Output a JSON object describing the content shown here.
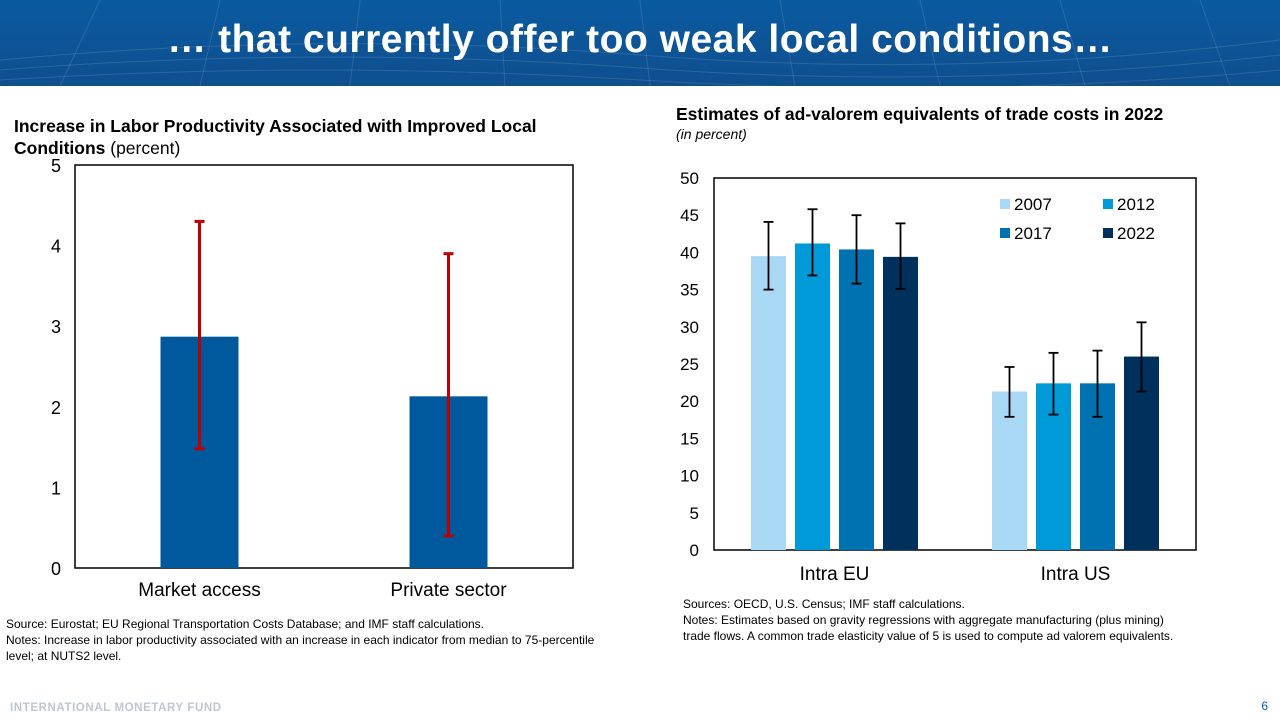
{
  "slide": {
    "title": "… that currently offer too weak local conditions…",
    "footer": "INTERNATIONAL MONETARY FUND",
    "page_number": "6"
  },
  "colors": {
    "banner": "#0a5aa0",
    "left_bar": "#00599c",
    "left_error": "#c00000",
    "right_series": [
      "#a9d8f5",
      "#009ad8",
      "#0071b1",
      "#00305c"
    ]
  },
  "left": {
    "title_main": "Increase in Labor Productivity Associated with Improved Local Conditions",
    "title_unit": "(percent)",
    "source": "Source: Eurostat; EU Regional Transportation Costs Database; and IMF staff calculations.",
    "notes": "Notes: Increase in labor productivity associated with an increase in each indicator from median to 75-percentile level; at NUTS2 level."
  },
  "right": {
    "title": "Estimates of ad-valorem equivalents of trade costs in 2022",
    "subtitle": "(in percent)",
    "sources": "Sources: OECD, U.S. Census; IMF staff calculations.",
    "notes": "Notes: Estimates based on gravity regressions with aggregate manufacturing (plus mining) trade flows. A common trade elasticity value of 5 is used to compute ad valorem equivalents."
  },
  "chart_data": [
    {
      "type": "bar",
      "title": "Increase in Labor Productivity Associated with Improved Local Conditions (percent)",
      "categories": [
        "Market access",
        "Private sector"
      ],
      "values": [
        2.87,
        2.13
      ],
      "error_low": [
        1.48,
        0.4
      ],
      "error_high": [
        4.3,
        3.9
      ],
      "ylim": [
        0,
        5
      ],
      "yticks": [
        0,
        1,
        2,
        3,
        4,
        5
      ],
      "grid": false
    },
    {
      "type": "bar",
      "title": "Estimates of ad-valorem equivalents of trade costs in 2022",
      "categories": [
        "Intra EU",
        "Intra US"
      ],
      "series": [
        {
          "name": "2007",
          "values": [
            39.5,
            21.3
          ],
          "error_low": [
            35.0,
            17.9
          ],
          "error_high": [
            44.1,
            24.6
          ]
        },
        {
          "name": "2012",
          "values": [
            41.2,
            22.4
          ],
          "error_low": [
            36.9,
            18.2
          ],
          "error_high": [
            45.8,
            26.5
          ]
        },
        {
          "name": "2017",
          "values": [
            40.4,
            22.4
          ],
          "error_low": [
            35.8,
            17.9
          ],
          "error_high": [
            45.0,
            26.8
          ]
        },
        {
          "name": "2022",
          "values": [
            39.4,
            26.0
          ],
          "error_low": [
            35.1,
            21.3
          ],
          "error_high": [
            43.9,
            30.6
          ]
        }
      ],
      "ylim": [
        0,
        50
      ],
      "yticks": [
        0,
        5,
        10,
        15,
        20,
        25,
        30,
        35,
        40,
        45,
        50
      ],
      "legend": "top-right",
      "grid": false
    }
  ]
}
